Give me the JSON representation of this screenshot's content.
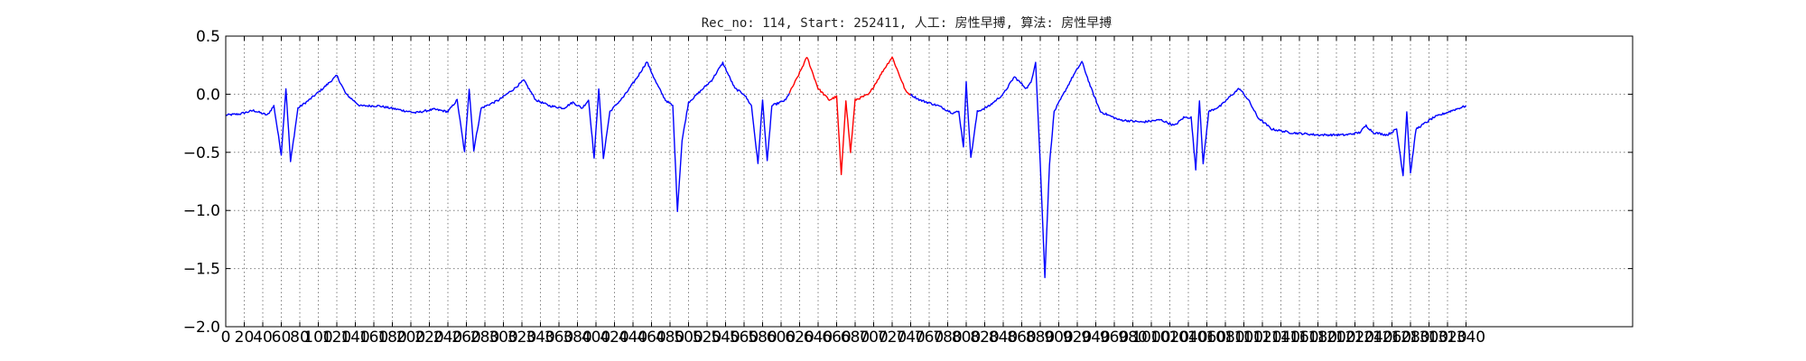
{
  "chart_data": {
    "type": "line",
    "title": "Rec_no: 114, Start: 252411, 人工: 房性早搏, 算法: 房性早搏",
    "xlabel": "",
    "ylabel": "",
    "xlim": [
      0,
      1520
    ],
    "ylim": [
      -2.0,
      0.5
    ],
    "grid": true,
    "y_ticks": [
      0.5,
      0.0,
      -0.5,
      -1.0,
      -1.5,
      -2.0
    ],
    "y_tick_labels": [
      "0.5",
      "0.0",
      "−0.5",
      "−1.0",
      "−1.5",
      "−2.0"
    ],
    "x_ticks": [
      0,
      20,
      40,
      60,
      80,
      100,
      120,
      140,
      160,
      180,
      200,
      220,
      240,
      260,
      280,
      300,
      320,
      340,
      360,
      380,
      400,
      420,
      440,
      460,
      480,
      500,
      520,
      540,
      560,
      580,
      600,
      620,
      640,
      660,
      680,
      700,
      720,
      740,
      760,
      780,
      800,
      820,
      840,
      860,
      880,
      900,
      920,
      940,
      960,
      980,
      1000,
      1020,
      1040,
      1060,
      1080,
      1100,
      1120,
      1140,
      1160,
      1180,
      1200,
      1220,
      1240,
      1260,
      1280,
      1300,
      1320,
      1340
    ],
    "x_tick_labels": [
      "0",
      "20",
      "40",
      "60",
      "80",
      "100",
      "120",
      "140",
      "160",
      "180",
      "200",
      "220",
      "240",
      "260",
      "280",
      "300",
      "320",
      "340",
      "360",
      "380",
      "400",
      "420",
      "440",
      "460",
      "480",
      "500",
      "520",
      "540",
      "560",
      "580",
      "600",
      "620",
      "640",
      "660",
      "680",
      "700",
      "720",
      "740",
      "760",
      "780",
      "800",
      "820",
      "840",
      "860",
      "880",
      "900",
      "920",
      "940",
      "960",
      "980",
      "1000",
      "1020",
      "1040",
      "1060",
      "1080",
      "1100",
      "1120",
      "1140",
      "1160",
      "1180",
      "1200",
      "1220",
      "1240",
      "1260",
      "1280",
      "1300",
      "1320",
      "1340"
    ],
    "colors": {
      "signal": "#0000ff",
      "highlight": "#ff0000",
      "grid": "#808080"
    },
    "sample_count": 1340,
    "signal_keypoints": [
      [
        0,
        -0.18
      ],
      [
        15,
        -0.17
      ],
      [
        30,
        -0.14
      ],
      [
        45,
        -0.18
      ],
      [
        52,
        -0.1
      ],
      [
        60,
        -0.52
      ],
      [
        65,
        0.05
      ],
      [
        70,
        -0.58
      ],
      [
        78,
        -0.12
      ],
      [
        90,
        -0.05
      ],
      [
        105,
        0.05
      ],
      [
        120,
        0.16
      ],
      [
        130,
        0.0
      ],
      [
        145,
        -0.1
      ],
      [
        165,
        -0.1
      ],
      [
        185,
        -0.13
      ],
      [
        205,
        -0.16
      ],
      [
        225,
        -0.13
      ],
      [
        240,
        -0.15
      ],
      [
        250,
        -0.05
      ],
      [
        258,
        -0.5
      ],
      [
        263,
        0.05
      ],
      [
        268,
        -0.48
      ],
      [
        276,
        -0.12
      ],
      [
        295,
        -0.05
      ],
      [
        312,
        0.05
      ],
      [
        322,
        0.12
      ],
      [
        335,
        -0.05
      ],
      [
        350,
        -0.1
      ],
      [
        365,
        -0.12
      ],
      [
        375,
        -0.07
      ],
      [
        385,
        -0.12
      ],
      [
        392,
        -0.05
      ],
      [
        398,
        -0.55
      ],
      [
        403,
        0.05
      ],
      [
        408,
        -0.55
      ],
      [
        415,
        -0.15
      ],
      [
        430,
        -0.02
      ],
      [
        445,
        0.15
      ],
      [
        455,
        0.28
      ],
      [
        465,
        0.1
      ],
      [
        475,
        -0.05
      ],
      [
        483,
        -0.1
      ],
      [
        488,
        -1.0
      ],
      [
        493,
        -0.4
      ],
      [
        500,
        -0.07
      ],
      [
        512,
        0.02
      ],
      [
        525,
        0.12
      ],
      [
        537,
        0.27
      ],
      [
        550,
        0.05
      ],
      [
        560,
        0.0
      ],
      [
        568,
        -0.1
      ],
      [
        575,
        -0.6
      ],
      [
        580,
        -0.05
      ],
      [
        585,
        -0.58
      ],
      [
        590,
        -0.1
      ],
      [
        605,
        -0.05
      ],
      [
        618,
        0.15
      ],
      [
        628,
        0.32
      ],
      [
        640,
        0.05
      ],
      [
        652,
        -0.05
      ],
      [
        660,
        -0.02
      ],
      [
        665,
        -0.7
      ],
      [
        670,
        -0.05
      ],
      [
        675,
        -0.5
      ],
      [
        680,
        -0.05
      ],
      [
        695,
        0.0
      ],
      [
        710,
        0.2
      ],
      [
        720,
        0.32
      ],
      [
        735,
        0.02
      ],
      [
        750,
        -0.05
      ],
      [
        770,
        -0.1
      ],
      [
        785,
        -0.16
      ],
      [
        792,
        -0.15
      ],
      [
        797,
        -0.45
      ],
      [
        800,
        0.1
      ],
      [
        805,
        -0.55
      ],
      [
        812,
        -0.15
      ],
      [
        825,
        -0.1
      ],
      [
        840,
        0.0
      ],
      [
        852,
        0.15
      ],
      [
        865,
        0.05
      ],
      [
        870,
        0.1
      ],
      [
        875,
        0.28
      ],
      [
        880,
        -0.6
      ],
      [
        885,
        -1.57
      ],
      [
        890,
        -0.6
      ],
      [
        895,
        -0.15
      ],
      [
        905,
        0.0
      ],
      [
        915,
        0.15
      ],
      [
        925,
        0.28
      ],
      [
        935,
        0.05
      ],
      [
        945,
        -0.15
      ],
      [
        965,
        -0.22
      ],
      [
        990,
        -0.24
      ],
      [
        1010,
        -0.22
      ],
      [
        1025,
        -0.27
      ],
      [
        1035,
        -0.2
      ],
      [
        1043,
        -0.2
      ],
      [
        1048,
        -0.65
      ],
      [
        1052,
        -0.05
      ],
      [
        1056,
        -0.6
      ],
      [
        1062,
        -0.15
      ],
      [
        1075,
        -0.1
      ],
      [
        1085,
        -0.02
      ],
      [
        1095,
        0.05
      ],
      [
        1105,
        -0.05
      ],
      [
        1115,
        -0.2
      ],
      [
        1130,
        -0.3
      ],
      [
        1150,
        -0.33
      ],
      [
        1180,
        -0.35
      ],
      [
        1210,
        -0.35
      ],
      [
        1225,
        -0.33
      ],
      [
        1232,
        -0.27
      ],
      [
        1240,
        -0.33
      ],
      [
        1255,
        -0.35
      ],
      [
        1265,
        -0.3
      ],
      [
        1272,
        -0.7
      ],
      [
        1276,
        -0.15
      ],
      [
        1280,
        -0.68
      ],
      [
        1286,
        -0.3
      ],
      [
        1305,
        -0.2
      ],
      [
        1325,
        -0.14
      ],
      [
        1340,
        -0.1
      ]
    ],
    "highlight_ranges": [
      [
        610,
        722
      ],
      [
        722,
        740
      ]
    ]
  }
}
